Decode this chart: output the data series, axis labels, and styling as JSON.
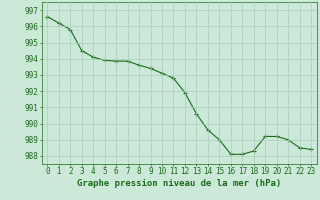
{
  "title": "Graphe pression niveau de la mer (hPa)",
  "x_values": [
    0,
    1,
    2,
    3,
    4,
    5,
    6,
    7,
    8,
    9,
    10,
    11,
    12,
    13,
    14,
    15,
    16,
    17,
    18,
    19,
    20,
    21,
    22,
    23
  ],
  "y_values": [
    996.6,
    996.2,
    995.8,
    994.5,
    994.1,
    993.9,
    993.85,
    993.85,
    993.6,
    993.4,
    993.1,
    992.8,
    991.9,
    990.6,
    989.6,
    989.0,
    988.1,
    988.1,
    988.3,
    989.2,
    989.2,
    989.0,
    988.5,
    988.4
  ],
  "ylim_min": 987.5,
  "ylim_max": 997.5,
  "yticks": [
    988,
    989,
    990,
    991,
    992,
    993,
    994,
    995,
    996,
    997
  ],
  "line_color": "#1a6b1a",
  "marker_color": "#1a6b1a",
  "bg_color": "#cce8d8",
  "grid_color": "#aaccbb",
  "tick_label_color": "#1a6b1a",
  "title_color": "#1a6b1a",
  "title_fontsize": 6.5,
  "tick_fontsize": 5.5
}
